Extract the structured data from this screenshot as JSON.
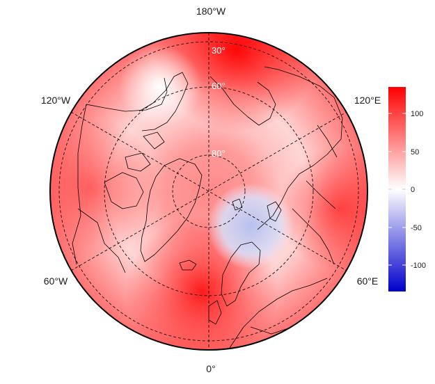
{
  "map": {
    "projection": "north-polar-stereographic",
    "meridian_labels": {
      "top": "180°W",
      "upper_left": "120°W",
      "upper_right": "120°E",
      "lower_left": "60°W",
      "lower_right": "60°E",
      "bottom": "0°"
    },
    "latitude_labels": [
      "30°",
      "60°",
      "80°"
    ],
    "colorbar": {
      "ticks": [
        "100",
        "50",
        "0",
        "-50",
        "-100"
      ],
      "range": [
        -130,
        130
      ],
      "colors": {
        "low": "#0000cc",
        "mid": "#ffffff",
        "high": "#ff0000"
      }
    },
    "colors": {
      "strong_positive": "#ff2020",
      "moderate_positive": "#ff8080",
      "weak_positive": "#ffd0d0",
      "near_zero": "#f4f4ff",
      "negative": "#c8ccf2"
    }
  }
}
